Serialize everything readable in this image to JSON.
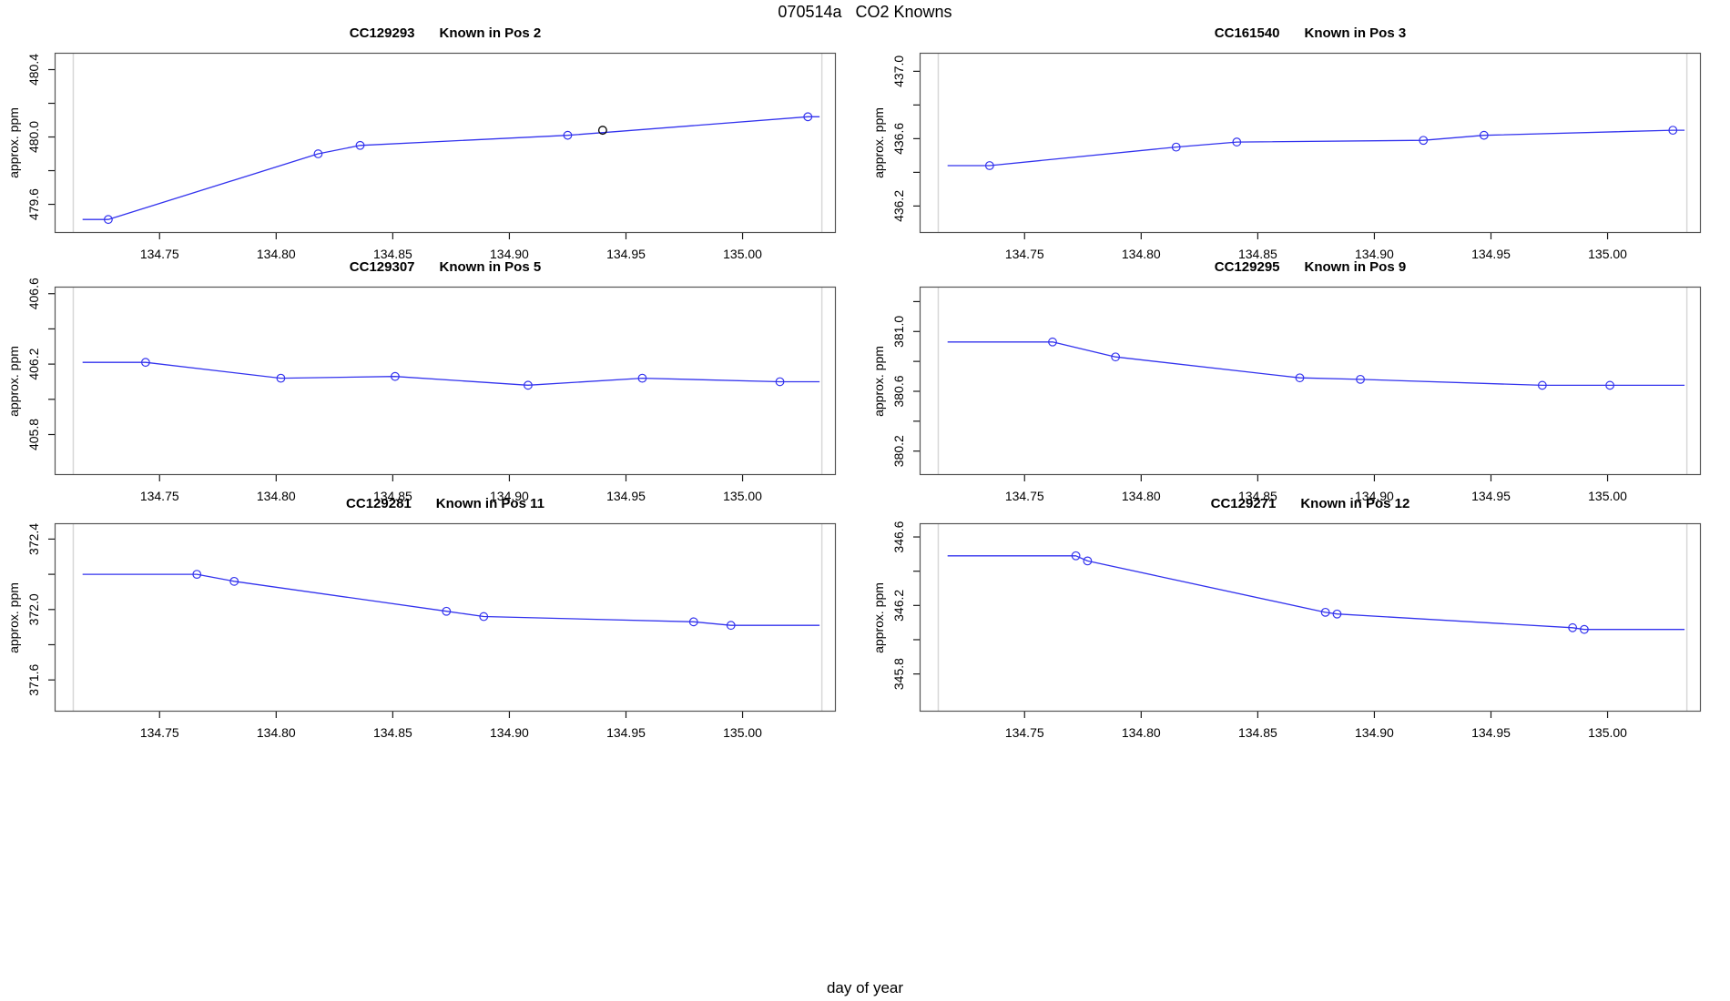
{
  "figure": {
    "title": "070514a   CO2 Knowns",
    "xlabel": "day of year",
    "ylabel": "approx. ppm",
    "colors": {
      "line": "#3333ee",
      "marker": "#3333ee",
      "extra_marker": "#000000",
      "boundary_line": "#d7d7d7",
      "axis_box": "#545454",
      "tick": "#1a1a1a",
      "text": "#000000",
      "background": "#ffffff"
    }
  },
  "chart_data": [
    {
      "type": "line",
      "station_id": "CC129293",
      "position_label": "Known in Pos 2",
      "ylabel": "approx. ppm",
      "x": [
        134.728,
        134.818,
        134.836,
        134.925,
        135.028
      ],
      "y": [
        479.51,
        479.9,
        479.95,
        480.01,
        480.12
      ],
      "extra_points": [
        {
          "x": 134.94,
          "y": 480.04
        }
      ],
      "xlim": [
        134.705,
        135.04
      ],
      "ylim": [
        479.43,
        480.5
      ],
      "xticks": [
        134.75,
        134.8,
        134.85,
        134.9,
        134.95,
        135.0
      ],
      "yticks": [
        479.6,
        479.8,
        480.0,
        480.2,
        480.4
      ],
      "ytick_labels": [
        "479.6",
        "",
        "480.0",
        "",
        "480.4"
      ],
      "boundary_lines_x": [
        134.713,
        135.034
      ],
      "line_x_extent": [
        134.717,
        135.033
      ]
    },
    {
      "type": "line",
      "station_id": "CC161540",
      "position_label": "Known in Pos 3",
      "ylabel": "approx. ppm",
      "x": [
        134.735,
        134.815,
        134.841,
        134.921,
        134.947,
        135.028
      ],
      "y": [
        436.44,
        436.55,
        436.58,
        436.59,
        436.62,
        436.65
      ],
      "extra_points": [],
      "xlim": [
        134.705,
        135.04
      ],
      "ylim": [
        436.04,
        437.11
      ],
      "xticks": [
        134.75,
        134.8,
        134.85,
        134.9,
        134.95,
        135.0
      ],
      "yticks": [
        436.2,
        436.4,
        436.6,
        436.8,
        437.0
      ],
      "ytick_labels": [
        "436.2",
        "",
        "436.6",
        "",
        "437.0"
      ],
      "boundary_lines_x": [
        134.713,
        135.034
      ],
      "line_x_extent": [
        134.717,
        135.033
      ]
    },
    {
      "type": "line",
      "station_id": "CC129307",
      "position_label": "Known in Pos 5",
      "ylabel": "approx. ppm",
      "x": [
        134.744,
        134.802,
        134.851,
        134.908,
        134.957,
        135.016
      ],
      "y": [
        406.21,
        406.12,
        406.13,
        406.08,
        406.12,
        406.1
      ],
      "extra_points": [],
      "xlim": [
        134.705,
        135.04
      ],
      "ylim": [
        405.57,
        406.64
      ],
      "xticks": [
        134.75,
        134.8,
        134.85,
        134.9,
        134.95,
        135.0
      ],
      "yticks": [
        405.8,
        406.0,
        406.2,
        406.4,
        406.6
      ],
      "ytick_labels": [
        "405.8",
        "",
        "406.2",
        "",
        "406.6"
      ],
      "boundary_lines_x": [
        134.713,
        135.034
      ],
      "line_x_extent": [
        134.717,
        135.033
      ]
    },
    {
      "type": "line",
      "station_id": "CC129295",
      "position_label": "Known in Pos 9",
      "ylabel": "approx. ppm",
      "x": [
        134.762,
        134.789,
        134.868,
        134.894,
        134.972,
        135.001
      ],
      "y": [
        380.93,
        380.83,
        380.69,
        380.68,
        380.64,
        380.64
      ],
      "extra_points": [],
      "xlim": [
        134.705,
        135.04
      ],
      "ylim": [
        380.04,
        381.3
      ],
      "xticks": [
        134.75,
        134.8,
        134.85,
        134.9,
        134.95,
        135.0
      ],
      "yticks": [
        380.2,
        380.4,
        380.6,
        380.8,
        381.0,
        381.2
      ],
      "ytick_labels": [
        "380.2",
        "",
        "380.6",
        "",
        "381.0",
        ""
      ],
      "boundary_lines_x": [
        134.713,
        135.034
      ],
      "line_x_extent": [
        134.717,
        135.033
      ]
    },
    {
      "type": "line",
      "station_id": "CC129281",
      "position_label": "Known in Pos 11",
      "ylabel": "approx. ppm",
      "x": [
        134.766,
        134.782,
        134.873,
        134.889,
        134.979,
        134.995
      ],
      "y": [
        372.2,
        372.16,
        371.99,
        371.96,
        371.93,
        371.91
      ],
      "extra_points": [],
      "xlim": [
        134.705,
        135.04
      ],
      "ylim": [
        371.42,
        372.49
      ],
      "xticks": [
        134.75,
        134.8,
        134.85,
        134.9,
        134.95,
        135.0
      ],
      "yticks": [
        371.6,
        371.8,
        372.0,
        372.2,
        372.4
      ],
      "ytick_labels": [
        "371.6",
        "",
        "372.0",
        "",
        "372.4"
      ],
      "boundary_lines_x": [
        134.713,
        135.034
      ],
      "line_x_extent": [
        134.717,
        135.033
      ]
    },
    {
      "type": "line",
      "station_id": "CC129271",
      "position_label": "Known in Pos 12",
      "ylabel": "approx. ppm",
      "x": [
        134.772,
        134.777,
        134.879,
        134.884,
        134.985,
        134.99
      ],
      "y": [
        346.49,
        346.46,
        346.16,
        346.15,
        346.07,
        346.06
      ],
      "extra_points": [],
      "xlim": [
        134.705,
        135.04
      ],
      "ylim": [
        345.58,
        346.68
      ],
      "xticks": [
        134.75,
        134.8,
        134.85,
        134.9,
        134.95,
        135.0
      ],
      "yticks": [
        345.8,
        346.0,
        346.2,
        346.4,
        346.6
      ],
      "ytick_labels": [
        "345.8",
        "",
        "346.2",
        "",
        "346.6"
      ],
      "boundary_lines_x": [
        134.713,
        135.034
      ],
      "line_x_extent": [
        134.717,
        135.033
      ]
    }
  ]
}
